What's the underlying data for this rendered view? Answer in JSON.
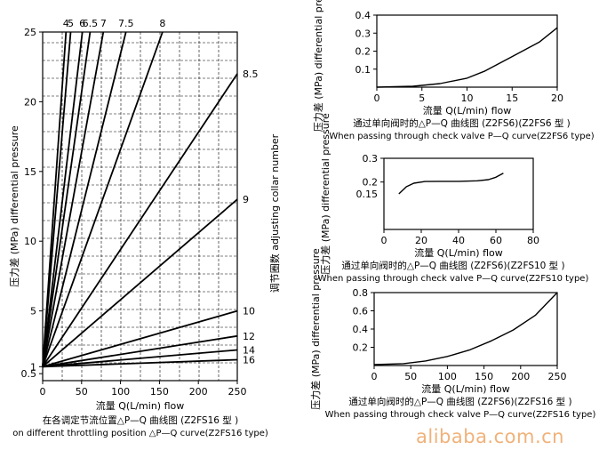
{
  "chart_data": [
    {
      "type": "line",
      "title": "",
      "xlabel": "流量 Q(L/min) flow",
      "ylabel": "压力差 (MPa) differential pressure",
      "right_label": "调节圈数 adjusting collar number",
      "caption_cn": "在各调定节流位置△P—Q 曲线图 (Z2FS16 型 )",
      "caption_en": "on different throttling position △P—Q curve(Z2FS16 type)",
      "xlim": [
        0,
        250
      ],
      "ylim": [
        0,
        25
      ],
      "x_ticks": [
        0,
        50,
        100,
        150,
        200,
        250
      ],
      "y_ticks": [
        {
          "v": 0.5,
          "label": "0.5"
        },
        {
          "v": 1,
          "label": "1"
        },
        {
          "v": 5,
          "label": "5"
        },
        {
          "v": 10,
          "label": "10"
        },
        {
          "v": 15,
          "label": "15"
        },
        {
          "v": 20,
          "label": "20"
        },
        {
          "v": 25,
          "label": "25"
        }
      ],
      "grid": true,
      "series": [
        {
          "name": "4",
          "values": [
            [
              0,
              1.0
            ],
            [
              30,
              25
            ]
          ]
        },
        {
          "name": "5",
          "values": [
            [
              0,
              1.0
            ],
            [
              36,
              25
            ]
          ]
        },
        {
          "name": "6",
          "values": [
            [
              0,
              1.0
            ],
            [
              51,
              25
            ]
          ]
        },
        {
          "name": "6.5",
          "values": [
            [
              0,
              1.0
            ],
            [
              61,
              25
            ]
          ]
        },
        {
          "name": "7",
          "values": [
            [
              0,
              1.0
            ],
            [
              78,
              25
            ]
          ]
        },
        {
          "name": "7.5",
          "values": [
            [
              0,
              1.0
            ],
            [
              107,
              25
            ]
          ]
        },
        {
          "name": "8",
          "values": [
            [
              0,
              1.0
            ],
            [
              154,
              25
            ]
          ]
        },
        {
          "name": "8.5",
          "values": [
            [
              0,
              1.0
            ],
            [
              250,
              22
            ]
          ]
        },
        {
          "name": "9",
          "values": [
            [
              0,
              1.0
            ],
            [
              250,
              13
            ]
          ]
        },
        {
          "name": "10",
          "values": [
            [
              0,
              1.0
            ],
            [
              250,
              5
            ]
          ]
        },
        {
          "name": "12",
          "values": [
            [
              0,
              1.0
            ],
            [
              250,
              3.2
            ]
          ]
        },
        {
          "name": "14",
          "values": [
            [
              0,
              1.0
            ],
            [
              250,
              2.2
            ]
          ]
        },
        {
          "name": "16",
          "values": [
            [
              0,
              1.0
            ],
            [
              250,
              1.5
            ]
          ]
        }
      ]
    },
    {
      "type": "line",
      "title": "",
      "xlabel": "流量 Q(L/min) flow",
      "ylabel": "压力差 (MPa) differential pressure",
      "caption_cn": "通过单向阀时的△P—Q 曲线图 (Z2FS6)(Z2FS6 型 )",
      "caption_en": "When passing through check valve  P—Q curve(Z2FS6 type)",
      "xlim": [
        0,
        20
      ],
      "ylim": [
        0,
        0.4
      ],
      "x_ticks": [
        0,
        5,
        10,
        15,
        20
      ],
      "y_ticks": [
        {
          "v": 0.1,
          "label": "0.1"
        },
        {
          "v": 0.2,
          "label": "0.2"
        },
        {
          "v": 0.3,
          "label": "0.3"
        },
        {
          "v": 0.4,
          "label": "0.4"
        }
      ],
      "grid": false,
      "series": [
        {
          "values": [
            [
              0,
              0
            ],
            [
              4,
              0.005
            ],
            [
              7,
              0.02
            ],
            [
              10,
              0.05
            ],
            [
              12,
              0.09
            ],
            [
              15,
              0.17
            ],
            [
              18,
              0.25
            ],
            [
              20,
              0.33
            ]
          ]
        }
      ]
    },
    {
      "type": "line",
      "title": "",
      "xlabel": "流量 Q(L/min) flow",
      "ylabel": "压力差 (MPa) differential pressure",
      "caption_cn": "通过单向阀时的△P—Q 曲线图 (Z2FS6)(Z2FS10 型 )",
      "caption_en": "When passing through check valve  P—Q curve(Z2FS10 type)",
      "xlim": [
        0,
        80
      ],
      "ylim": [
        0,
        0.3
      ],
      "x_ticks": [
        0,
        20,
        40,
        60,
        80
      ],
      "y_ticks": [
        {
          "v": 0.2,
          "label": "0.2"
        },
        {
          "v": 0.3,
          "label": "0.3"
        }
      ],
      "y_baseline_label": "0.15",
      "y_baseline": 0.15,
      "grid": false,
      "series": [
        {
          "values": [
            [
              8,
              0.15
            ],
            [
              12,
              0.18
            ],
            [
              16,
              0.195
            ],
            [
              22,
              0.202
            ],
            [
              30,
              0.203
            ],
            [
              40,
              0.203
            ],
            [
              50,
              0.205
            ],
            [
              56,
              0.21
            ],
            [
              60,
              0.22
            ],
            [
              64,
              0.237
            ]
          ]
        }
      ]
    },
    {
      "type": "line",
      "title": "",
      "xlabel": "流量 Q(L/min) flow",
      "ylabel": "压力差 (MPa) differential pressure",
      "caption_cn": "通过单向阀时的△P—Q 曲线图 (Z2FS6)(Z2FS16 型 )",
      "caption_en": "When passing through check valve  P—Q curve(Z2FS16 type)",
      "xlim": [
        0,
        250
      ],
      "ylim": [
        0,
        0.8
      ],
      "x_ticks": [
        0,
        50,
        100,
        150,
        200,
        250
      ],
      "y_ticks": [
        {
          "v": 0.2,
          "label": "0.2"
        },
        {
          "v": 0.4,
          "label": "0.4"
        },
        {
          "v": 0.6,
          "label": "0.6"
        },
        {
          "v": 0.8,
          "label": "0.8"
        }
      ],
      "grid": false,
      "series": [
        {
          "values": [
            [
              0,
              0.01
            ],
            [
              40,
              0.02
            ],
            [
              70,
              0.05
            ],
            [
              100,
              0.1
            ],
            [
              130,
              0.17
            ],
            [
              160,
              0.27
            ],
            [
              190,
              0.39
            ],
            [
              220,
              0.55
            ],
            [
              250,
              0.8
            ]
          ]
        }
      ]
    }
  ],
  "watermark": "alibaba.com.cn"
}
